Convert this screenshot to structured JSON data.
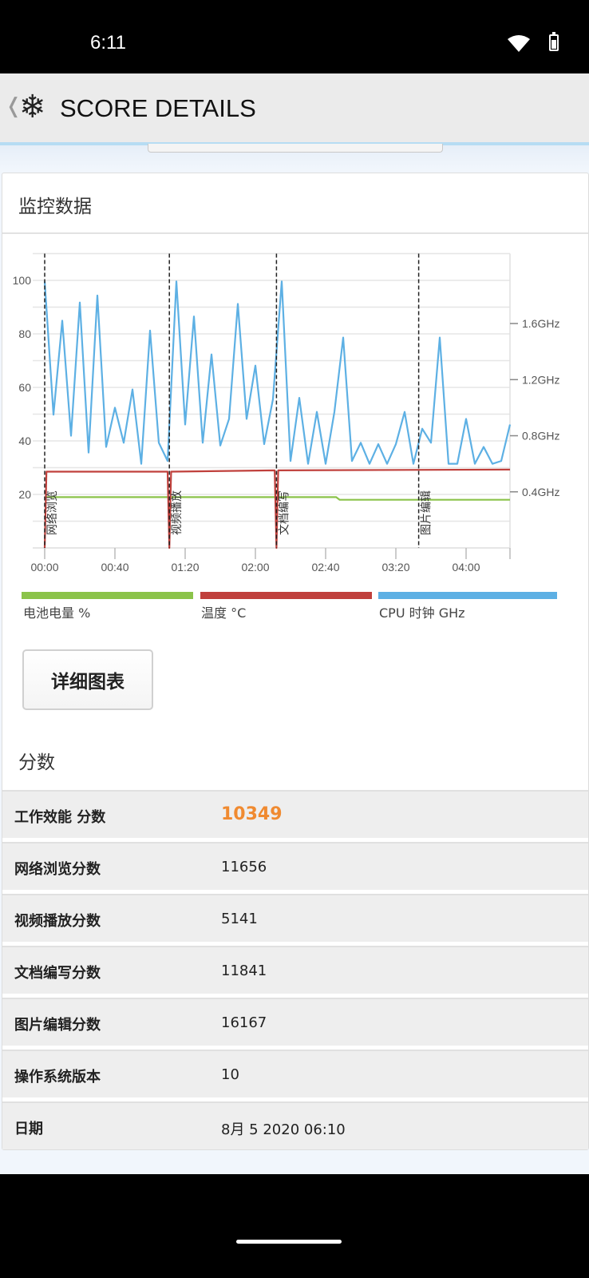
{
  "status_bar": {
    "time": "6:11",
    "icons": [
      "wifi-icon",
      "battery-icon"
    ]
  },
  "header": {
    "back_icon": "chevron-left-icon",
    "logo_icon": "snowflake-icon",
    "title": "SCORE DETAILS"
  },
  "monitor": {
    "title": "监控数据",
    "legend": [
      {
        "label": "电池电量 %",
        "color": "#8bc34a"
      },
      {
        "label": "温度 °C",
        "color": "#c0403c"
      },
      {
        "label": "CPU 时钟 GHz",
        "color": "#5db0e4"
      }
    ],
    "detail_button": "详细图表"
  },
  "chart_data": {
    "type": "line",
    "x_ticks": [
      "00:00",
      "00:40",
      "01:20",
      "02:00",
      "02:40",
      "03:20",
      "04:00"
    ],
    "y_left_ticks": [
      "100",
      "80",
      "60",
      "40",
      "20"
    ],
    "y_left_range": [
      0,
      110
    ],
    "y_right_ticks": [
      "1.6GHz",
      "1.2GHz",
      "0.8GHz",
      "0.4GHz"
    ],
    "y_right_range": [
      0,
      2.1
    ],
    "x_range": [
      "00:00",
      "04:25"
    ],
    "grid": true,
    "legend_placement": "bottom",
    "events": [
      {
        "time": "00:00",
        "label": "网络浏览"
      },
      {
        "time": "01:11",
        "label": "视频播放"
      },
      {
        "time": "02:12",
        "label": "文档编写"
      },
      {
        "time": "03:33",
        "label": "图片编辑"
      }
    ],
    "series": [
      {
        "name": "CPU 时钟 GHz",
        "axis": "right",
        "color": "#5db0e4",
        "x": [
          "00:00",
          "00:05",
          "00:10",
          "00:15",
          "00:20",
          "00:25",
          "00:30",
          "00:35",
          "00:40",
          "00:45",
          "00:50",
          "00:55",
          "01:00",
          "01:05",
          "01:10",
          "01:15",
          "01:20",
          "01:25",
          "01:30",
          "01:35",
          "01:40",
          "01:45",
          "01:50",
          "01:55",
          "02:00",
          "02:05",
          "02:10",
          "02:15",
          "02:20",
          "02:25",
          "02:30",
          "02:35",
          "02:40",
          "02:45",
          "02:50",
          "02:55",
          "03:00",
          "03:05",
          "03:10",
          "03:15",
          "03:20",
          "03:25",
          "03:30",
          "03:35",
          "03:40",
          "03:45",
          "03:50",
          "03:55",
          "04:00",
          "04:05",
          "04:10",
          "04:15",
          "04:20",
          "04:25"
        ],
        "values": [
          1.9,
          0.95,
          1.62,
          0.8,
          1.75,
          0.68,
          1.8,
          0.72,
          1.0,
          0.75,
          1.13,
          0.6,
          1.55,
          0.75,
          0.62,
          1.9,
          0.88,
          1.65,
          0.75,
          1.38,
          0.73,
          0.92,
          1.74,
          0.92,
          1.3,
          0.74,
          1.06,
          1.9,
          0.62,
          1.07,
          0.6,
          0.97,
          0.6,
          0.97,
          1.5,
          0.62,
          0.75,
          0.6,
          0.74,
          0.6,
          0.74,
          0.97,
          0.6,
          0.85,
          0.75,
          1.5,
          0.6,
          0.6,
          0.92,
          0.6,
          0.72,
          0.6,
          0.62,
          0.88
        ]
      },
      {
        "name": "温度 °C",
        "axis": "left",
        "color": "#c0403c",
        "x": [
          "00:00",
          "00:01",
          "01:10",
          "01:11",
          "01:12",
          "02:11",
          "02:12",
          "02:13",
          "04:25"
        ],
        "values": [
          0,
          28.5,
          28.5,
          0,
          28.5,
          29,
          0,
          29,
          29.3
        ]
      },
      {
        "name": "电池电量 %",
        "axis": "left",
        "color": "#8bc34a",
        "x": [
          "00:01",
          "02:46",
          "02:48",
          "04:25"
        ],
        "values": [
          19,
          19,
          18,
          18
        ]
      }
    ]
  },
  "scores": {
    "title": "分数",
    "rows": [
      {
        "label": "工作效能 分数",
        "value": "10349"
      },
      {
        "label": "网络浏览分数",
        "value": "11656"
      },
      {
        "label": "视频播放分数",
        "value": "5141"
      },
      {
        "label": "文档编写分数",
        "value": "11841"
      },
      {
        "label": "图片编辑分数",
        "value": "16167"
      },
      {
        "label": "操作系统版本",
        "value": "10"
      },
      {
        "label": "日期",
        "value": "8月 5 2020 06:10"
      }
    ]
  }
}
